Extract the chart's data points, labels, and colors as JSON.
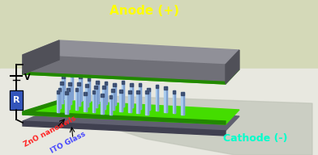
{
  "bg_color_top": "#d4d9b8",
  "bg_color_bot": "#e8e8e0",
  "title_anode": "Anode (+)",
  "title_cathode": "Cathode (-)",
  "label_zno": "ZnO nanoawls",
  "label_ito": "ITO Glass",
  "label_v": "V",
  "label_r": "R",
  "anode_color": "#ffff00",
  "cathode_color": "#00ffcc",
  "zno_label_color": "#ff2222",
  "ito_label_color": "#4444ff",
  "top_plate_top": "#909098",
  "top_plate_face": "#707078",
  "top_plate_side": "#505058",
  "green_bright": "#44dd00",
  "green_dark": "#228800",
  "bottom_plate_top": "#606070",
  "bottom_plate_face": "#404050",
  "nanowire_light": "#aaccee",
  "nanowire_mid": "#7799cc",
  "nanowire_dark": "#334466",
  "circuit_color": "#000000",
  "resistor_color": "#3355bb",
  "shadow_color": "#c0c4b8"
}
